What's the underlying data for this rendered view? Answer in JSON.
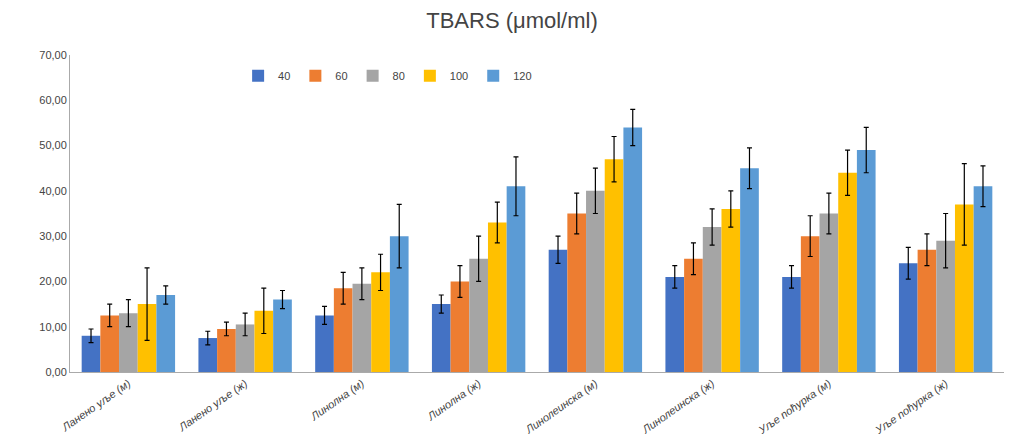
{
  "chart_data": {
    "type": "bar",
    "title": "TBARS (μmol/ml)",
    "categories": [
      "Ланено уље (м)",
      "Ланено уље (ж)",
      "Линолна (м)",
      "Линолна (ж)",
      "Линолеинска (м)",
      "Линолеинска (ж)",
      "Уље noћурка (м)",
      "Уље noћурка (ж)"
    ],
    "series": [
      {
        "name": "40",
        "color": "#4472C4",
        "values": [
          8.0,
          7.5,
          12.5,
          15.0,
          27.0,
          21.0,
          21.0,
          24.0
        ],
        "errors": [
          1.5,
          1.5,
          2.0,
          2.0,
          3.0,
          2.5,
          2.5,
          3.5
        ]
      },
      {
        "name": "60",
        "color": "#ED7D31",
        "values": [
          12.5,
          9.5,
          18.5,
          20.0,
          35.0,
          25.0,
          30.0,
          27.0
        ],
        "errors": [
          2.5,
          1.5,
          3.5,
          3.5,
          4.5,
          3.5,
          4.5,
          3.5
        ]
      },
      {
        "name": "80",
        "color": "#A5A5A5",
        "values": [
          13.0,
          10.5,
          19.5,
          25.0,
          40.0,
          32.0,
          35.0,
          29.0
        ],
        "errors": [
          3.0,
          2.5,
          3.5,
          5.0,
          5.0,
          4.0,
          4.5,
          6.0
        ]
      },
      {
        "name": "100",
        "color": "#FFC000",
        "values": [
          15.0,
          13.5,
          22.0,
          33.0,
          47.0,
          36.0,
          44.0,
          37.0
        ],
        "errors": [
          8.0,
          5.0,
          4.0,
          4.5,
          5.0,
          4.0,
          5.0,
          9.0
        ]
      },
      {
        "name": "120",
        "color": "#5B9BD5",
        "values": [
          17.0,
          16.0,
          30.0,
          41.0,
          54.0,
          45.0,
          49.0,
          41.0
        ],
        "errors": [
          2.0,
          2.0,
          7.0,
          6.5,
          4.0,
          4.5,
          5.0,
          4.5
        ]
      }
    ],
    "ylim": [
      0,
      70
    ],
    "yticks": [
      {
        "value": 0,
        "label": "0,00"
      },
      {
        "value": 10,
        "label": "10,00"
      },
      {
        "value": 20,
        "label": "20,00"
      },
      {
        "value": 30,
        "label": "30,00"
      },
      {
        "value": 40,
        "label": "40,00"
      },
      {
        "value": 50,
        "label": "50,00"
      },
      {
        "value": 60,
        "label": "60,00"
      },
      {
        "value": 70,
        "label": "70,00"
      }
    ],
    "grid": false,
    "legend": "upper left"
  }
}
